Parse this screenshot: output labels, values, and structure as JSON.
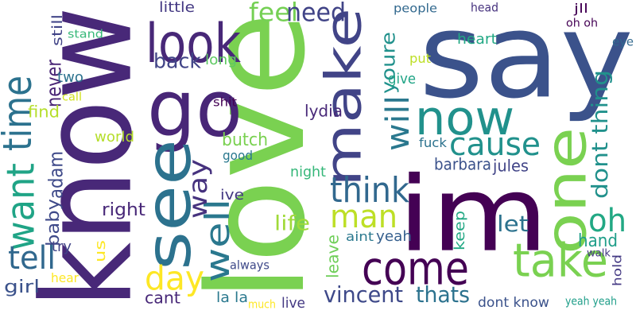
{
  "word_cloud": {
    "words": [
      {
        "text": "say",
        "color": "#3b528b"
      },
      {
        "text": "love",
        "color": "#7ad151"
      },
      {
        "text": "know",
        "color": "#482878"
      },
      {
        "text": "im",
        "color": "#440154"
      },
      {
        "text": "go",
        "color": "#482677"
      },
      {
        "text": "now",
        "color": "#21918c"
      },
      {
        "text": "see",
        "color": "#2c728e"
      },
      {
        "text": "look",
        "color": "#482878"
      },
      {
        "text": "make",
        "color": "#414487"
      },
      {
        "text": "one",
        "color": "#7ad151"
      },
      {
        "text": "take",
        "color": "#7ad151"
      },
      {
        "text": "come",
        "color": "#440154"
      },
      {
        "text": "time",
        "color": "#2c728e"
      },
      {
        "text": "want",
        "color": "#20a486"
      },
      {
        "text": "tell",
        "color": "#31688e"
      },
      {
        "text": "cause",
        "color": "#21918c"
      },
      {
        "text": "think",
        "color": "#31688e"
      },
      {
        "text": "man",
        "color": "#bddf26"
      },
      {
        "text": "oh",
        "color": "#22a884"
      },
      {
        "text": "dont thing",
        "color": "#21918c"
      },
      {
        "text": "well",
        "color": "#2a788e"
      },
      {
        "text": "way",
        "color": "#46327e"
      },
      {
        "text": "day",
        "color": "#fde725"
      },
      {
        "text": "feel",
        "color": "#75d054"
      },
      {
        "text": "need",
        "color": "#414487"
      },
      {
        "text": "back",
        "color": "#414487"
      },
      {
        "text": "long",
        "color": "#5ec962"
      },
      {
        "text": "youre",
        "color": "#21918c"
      },
      {
        "text": "will",
        "color": "#2a788e"
      },
      {
        "text": "still",
        "color": "#414487"
      },
      {
        "text": "stand",
        "color": "#37b878"
      },
      {
        "text": "little",
        "color": "#443983"
      },
      {
        "text": "people",
        "color": "#31688e"
      },
      {
        "text": "head",
        "color": "#46327e"
      },
      {
        "text": "jll",
        "color": "#440154"
      },
      {
        "text": "oh oh",
        "color": "#440154"
      },
      {
        "text": "eye",
        "color": "#31688e"
      },
      {
        "text": "heart",
        "color": "#22a884"
      },
      {
        "text": "put",
        "color": "#bddf26"
      },
      {
        "text": "give",
        "color": "#20a486"
      },
      {
        "text": "never",
        "color": "#482475"
      },
      {
        "text": "two",
        "color": "#2c728e"
      },
      {
        "text": "call",
        "color": "#d0e11c"
      },
      {
        "text": "find",
        "color": "#b5de2b"
      },
      {
        "text": "shit",
        "color": "#440154"
      },
      {
        "text": "lydia",
        "color": "#482878"
      },
      {
        "text": "world",
        "color": "#b5de2b"
      },
      {
        "text": "adam",
        "color": "#3e4989"
      },
      {
        "text": "baby",
        "color": "#3e4989"
      },
      {
        "text": "butch",
        "color": "#7ad151"
      },
      {
        "text": "good",
        "color": "#2a788e"
      },
      {
        "text": "night",
        "color": "#35b779"
      },
      {
        "text": "fuck",
        "color": "#2c728e"
      },
      {
        "text": "barbara",
        "color": "#3b528b"
      },
      {
        "text": "jules",
        "color": "#414487"
      },
      {
        "text": "right",
        "color": "#482878"
      },
      {
        "text": "ive",
        "color": "#443983"
      },
      {
        "text": "life",
        "color": "#a0da39"
      },
      {
        "text": "keep",
        "color": "#22a884"
      },
      {
        "text": "let",
        "color": "#2c728e"
      },
      {
        "text": "hand",
        "color": "#1f9e89"
      },
      {
        "text": "try",
        "color": "#414487"
      },
      {
        "text": "us",
        "color": "#fde725"
      },
      {
        "text": "always",
        "color": "#3e4989"
      },
      {
        "text": "aint",
        "color": "#2a788e"
      },
      {
        "text": "yeah",
        "color": "#355f8d"
      },
      {
        "text": "leave",
        "color": "#6ece58"
      },
      {
        "text": "walk",
        "color": "#443983"
      },
      {
        "text": "hold",
        "color": "#443983"
      },
      {
        "text": "girl",
        "color": "#3b528b"
      },
      {
        "text": "hear",
        "color": "#fde725"
      },
      {
        "text": "cant",
        "color": "#482878"
      },
      {
        "text": "la la",
        "color": "#2a788e"
      },
      {
        "text": "much",
        "color": "#fde725"
      },
      {
        "text": "live",
        "color": "#443983"
      },
      {
        "text": "vincent",
        "color": "#3e4989"
      },
      {
        "text": "thats",
        "color": "#2c728e"
      },
      {
        "text": "dont know",
        "color": "#3b528b"
      },
      {
        "text": "yeah yeah",
        "color": "#1f9e89"
      }
    ]
  }
}
